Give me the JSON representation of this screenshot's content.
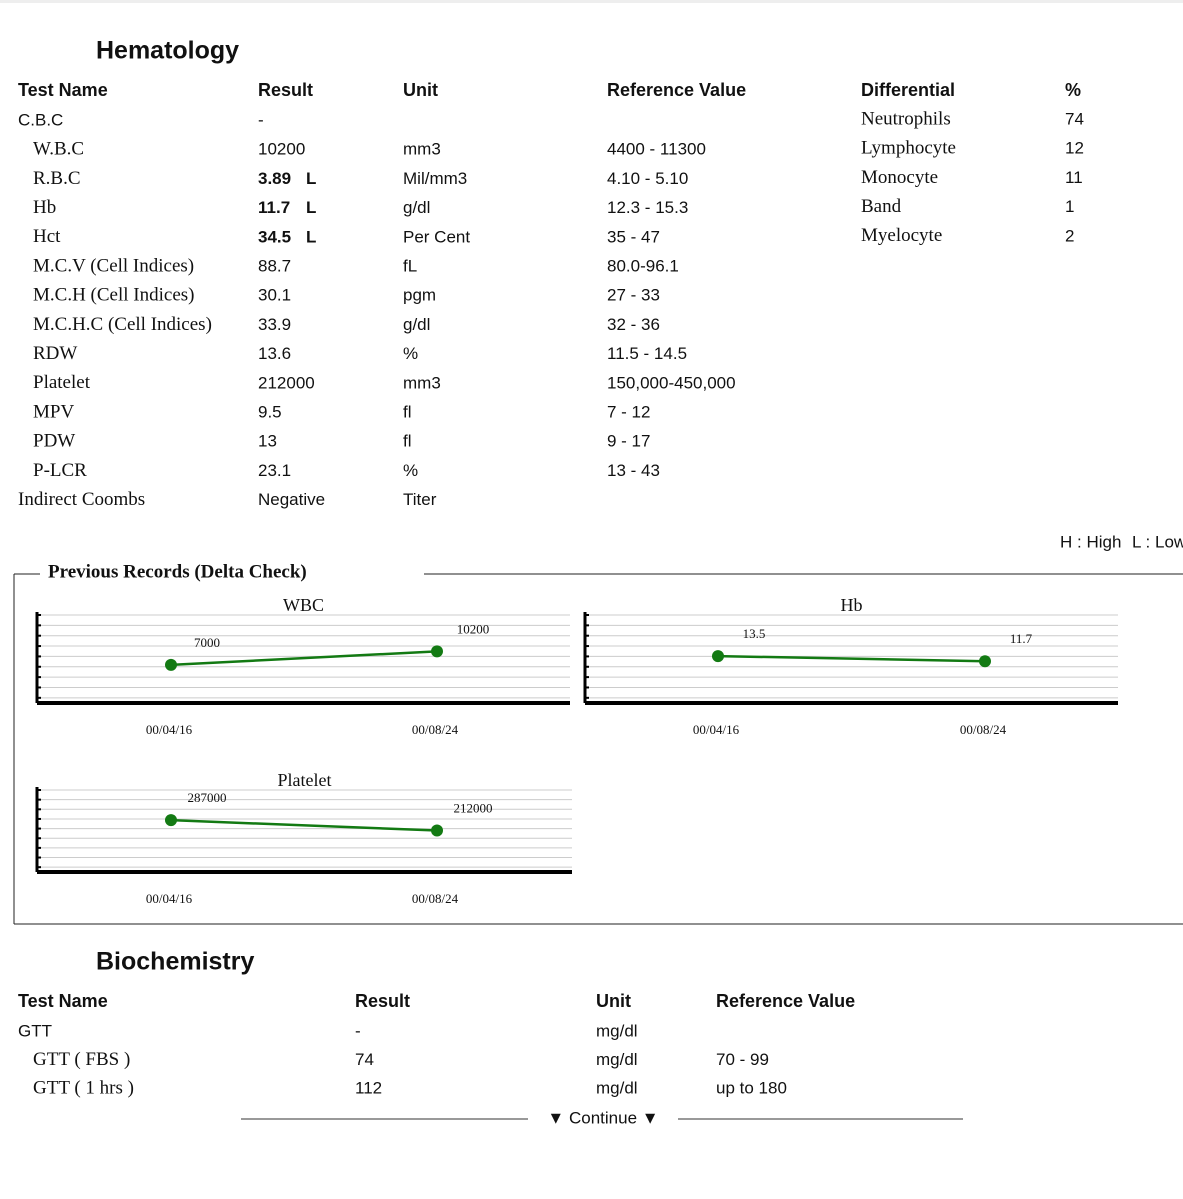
{
  "hematology": {
    "title": "Hematology",
    "headers": [
      "Test Name",
      "Result",
      "Unit",
      "Reference Value"
    ],
    "sections": [
      {
        "name": "C.B.C",
        "result": "-",
        "items": [
          {
            "name": "W.B.C",
            "result": "10200",
            "unit": "mm3",
            "ref": "4400 - 11300"
          },
          {
            "name": "R.B.C",
            "result": "3.89",
            "flag": "L",
            "unit": "Mil/mm3",
            "ref": "4.10 - 5.10"
          },
          {
            "name": "Hb",
            "result": "11.7",
            "flag": "L",
            "unit": "g/dl",
            "ref": "12.3 - 15.3"
          },
          {
            "name": "Hct",
            "result": "34.5",
            "flag": "L",
            "unit": "Per Cent",
            "ref": "35 - 47"
          },
          {
            "name": "M.C.V (Cell Indices)",
            "result": "88.7",
            "unit": "fL",
            "ref": "80.0-96.1"
          },
          {
            "name": "M.C.H (Cell Indices)",
            "result": "30.1",
            "unit": "pgm",
            "ref": "27 - 33"
          },
          {
            "name": "M.C.H.C (Cell Indices)",
            "result": "33.9",
            "unit": "g/dl",
            "ref": "32 - 36"
          },
          {
            "name": "RDW",
            "result": "13.6",
            "unit": "%",
            "ref": "11.5 - 14.5"
          },
          {
            "name": "Platelet",
            "result": "212000",
            "unit": "mm3",
            "ref": "150,000-450,000"
          },
          {
            "name": "MPV",
            "result": "9.5",
            "unit": "fl",
            "ref": "7 - 12"
          },
          {
            "name": "PDW",
            "result": "13",
            "unit": "fl",
            "ref": "9 - 17"
          },
          {
            "name": "P-LCR",
            "result": "23.1",
            "unit": "%",
            "ref": "13 - 43"
          }
        ]
      },
      {
        "name": "Indirect Coombs",
        "result": "Negative",
        "unit": "Titer"
      }
    ],
    "differential": {
      "headers": [
        "Differential",
        "%"
      ],
      "rows": [
        [
          "Neutrophils",
          "74"
        ],
        [
          "Lymphocyte",
          "12"
        ],
        [
          "Monocyte",
          "11"
        ],
        [
          "Band",
          "1"
        ],
        [
          "Myelocyte",
          "2"
        ]
      ]
    },
    "legend": [
      "H : High",
      "L : Low"
    ]
  },
  "delta_check": {
    "title": "Previous Records (Delta Check)"
  },
  "chart_data": [
    {
      "type": "line",
      "title": "WBC",
      "categories": [
        "00/04/16",
        "00/08/24"
      ],
      "values": [
        7000,
        10200
      ],
      "color": "#137a13",
      "ylim": [
        -2000,
        19500
      ]
    },
    {
      "type": "line",
      "title": "Hb",
      "categories": [
        "00/04/16",
        "00/08/24"
      ],
      "values": [
        13.5,
        11.7
      ],
      "color": "#137a13",
      "ylim": [
        -3,
        29
      ]
    },
    {
      "type": "line",
      "title": "Platelet",
      "categories": [
        "00/04/16",
        "00/08/24"
      ],
      "values": [
        287000,
        212000
      ],
      "color": "#137a13",
      "ylim": [
        -88000,
        527000
      ]
    }
  ],
  "biochemistry": {
    "title": "Biochemistry",
    "headers": [
      "Test Name",
      "Result",
      "Unit",
      "Reference Value"
    ],
    "sections": [
      {
        "name": "GTT",
        "result": "-",
        "unit": "mg/dl",
        "items": [
          {
            "name": "GTT ( FBS )",
            "result": "74",
            "unit": "mg/dl",
            "ref": "70 - 99"
          },
          {
            "name": "GTT ( 1 hrs )",
            "result": "112",
            "unit": "mg/dl",
            "ref": "up to 180"
          }
        ]
      }
    ]
  },
  "footer": "▼ Continue ▼"
}
